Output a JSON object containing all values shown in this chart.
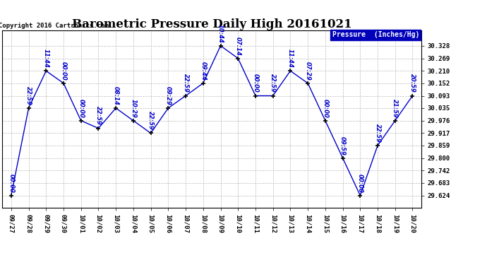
{
  "title": "Barometric Pressure Daily High 20161021",
  "copyright": "Copyright 2016 Cartronics.com",
  "legend_label": "Pressure  (Inches/Hg)",
  "x_labels": [
    "09/27",
    "09/28",
    "09/29",
    "09/30",
    "10/01",
    "10/02",
    "10/03",
    "10/04",
    "10/05",
    "10/06",
    "10/07",
    "10/08",
    "10/09",
    "10/10",
    "10/11",
    "10/12",
    "10/13",
    "10/14",
    "10/15",
    "10/16",
    "10/17",
    "10/18",
    "10/19",
    "10/20"
  ],
  "y_values": [
    29.624,
    30.035,
    30.21,
    30.152,
    29.976,
    29.94,
    30.035,
    29.976,
    29.917,
    30.035,
    30.093,
    30.152,
    30.328,
    30.269,
    30.093,
    30.093,
    30.21,
    30.152,
    29.976,
    29.8,
    29.624,
    29.859,
    29.976,
    30.093
  ],
  "point_labels": [
    "00:00",
    "22:59",
    "11:44",
    "00:00",
    "00:00",
    "22:59",
    "08:14",
    "10:29",
    "22:59",
    "09:29",
    "22:59",
    "09:44",
    "10:44",
    "07:14",
    "00:00",
    "22:59",
    "11:44",
    "07:29",
    "00:00",
    "09:59",
    "00:00",
    "22:59",
    "21:59",
    "20:59"
  ],
  "line_color": "#0000cc",
  "marker_color": "#000000",
  "bg_color": "#ffffff",
  "grid_color": "#bbbbbb",
  "text_color": "#0000cc",
  "ylim_min": 29.565,
  "ylim_max": 30.4,
  "yticks": [
    29.624,
    29.683,
    29.742,
    29.8,
    29.859,
    29.917,
    29.976,
    30.035,
    30.093,
    30.152,
    30.21,
    30.269,
    30.328
  ],
  "title_fontsize": 12,
  "label_fontsize": 6,
  "copyright_fontsize": 6.5,
  "tick_fontsize": 6.5,
  "legend_fontsize": 7
}
